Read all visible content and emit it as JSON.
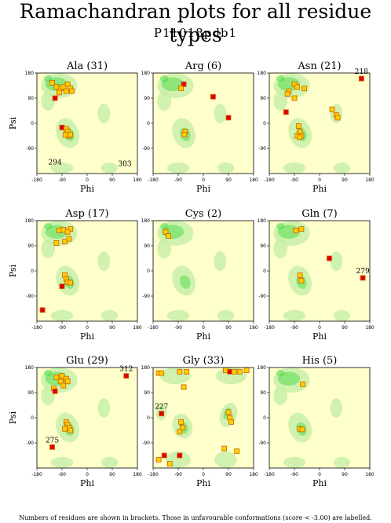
{
  "title": "Ramachandran plots for all residue types",
  "subtitle": "P11018pdb1",
  "footnote": "Numbers of residues are shown in brackets. Those in unfavourable conformations (score < -3.00) are labelled.",
  "colors": {
    "background": "#ffffcc",
    "favoured_light": "#c8f0a8",
    "favoured_dark": "#3cd83c",
    "normal_point": "#ffd000",
    "outlier_point": "#e00000",
    "point_border": "#d06000"
  },
  "chart_data": [
    {
      "type": "scatter",
      "title": "Ala (31)",
      "xlabel": "Phi",
      "ylabel": "Psi",
      "xlim": [
        -180,
        180
      ],
      "ylim": [
        -180,
        180
      ],
      "xticks": [
        "-180",
        "-90",
        "0",
        "90",
        "180"
      ],
      "yticks": [
        "180",
        "90",
        "0",
        "-90"
      ],
      "points": [
        [
          -125,
          145,
          "n"
        ],
        [
          -110,
          130,
          "n"
        ],
        [
          -95,
          125,
          "n"
        ],
        [
          -85,
          130,
          "n"
        ],
        [
          -70,
          140,
          "n"
        ],
        [
          -60,
          125,
          "n"
        ],
        [
          -75,
          115,
          "n"
        ],
        [
          -100,
          110,
          "n"
        ],
        [
          -55,
          115,
          "n"
        ],
        [
          -115,
          90,
          "o"
        ],
        [
          -90,
          -15,
          "o"
        ],
        [
          -75,
          -20,
          "n"
        ],
        [
          -70,
          -30,
          "n"
        ],
        [
          -65,
          -45,
          "n"
        ],
        [
          -60,
          -40,
          "n"
        ],
        [
          -78,
          -42,
          "n"
        ]
      ],
      "outliers": [
        {
          "label": "294",
          "x": -115,
          "y": -165
        },
        {
          "label": "303",
          "x": 135,
          "y": -170
        }
      ]
    },
    {
      "type": "scatter",
      "title": "Arg (6)",
      "xlabel": "Phi",
      "ylabel": "Psi",
      "xlim": [
        -180,
        180
      ],
      "ylim": [
        -180,
        180
      ],
      "xticks": [
        "-180",
        "-90",
        "0",
        "90",
        "180"
      ],
      "yticks": [
        "180",
        "90",
        "0",
        "-90"
      ],
      "points": [
        [
          -70,
          140,
          "o"
        ],
        [
          -80,
          125,
          "n"
        ],
        [
          -65,
          -30,
          "n"
        ],
        [
          -68,
          -40,
          "n"
        ],
        [
          35,
          95,
          "o"
        ],
        [
          90,
          20,
          "o"
        ]
      ],
      "outliers": []
    },
    {
      "type": "scatter",
      "title": "Asn (21)",
      "xlabel": "Phi",
      "ylabel": "Psi",
      "xlim": [
        -180,
        180
      ],
      "ylim": [
        -180,
        180
      ],
      "xticks": [
        "-180",
        "-90",
        "0",
        "90",
        "180"
      ],
      "yticks": [
        "180",
        "90",
        "0",
        "-90"
      ],
      "points": [
        [
          -90,
          140,
          "n"
        ],
        [
          -80,
          130,
          "n"
        ],
        [
          -110,
          115,
          "n"
        ],
        [
          -115,
          105,
          "n"
        ],
        [
          -90,
          90,
          "n"
        ],
        [
          -55,
          125,
          "n"
        ],
        [
          -120,
          40,
          "o"
        ],
        [
          -75,
          -10,
          "n"
        ],
        [
          -70,
          -30,
          "n"
        ],
        [
          -80,
          -45,
          "n"
        ],
        [
          -65,
          -45,
          "n"
        ],
        [
          -72,
          -50,
          "n"
        ],
        [
          45,
          50,
          "n"
        ],
        [
          60,
          30,
          "n"
        ],
        [
          65,
          20,
          "n"
        ],
        [
          150,
          160,
          "o"
        ]
      ],
      "outliers": [
        {
          "label": "218",
          "x": 150,
          "y": 160
        }
      ]
    },
    {
      "type": "scatter",
      "title": "Asp (17)",
      "xlabel": "Phi",
      "ylabel": "Psi",
      "xlim": [
        -180,
        180
      ],
      "ylim": [
        -180,
        180
      ],
      "xticks": [
        "-180",
        "-90",
        "0",
        "90",
        "180"
      ],
      "yticks": [
        "180",
        "90",
        "0",
        "-90"
      ],
      "points": [
        [
          -100,
          145,
          "n"
        ],
        [
          -85,
          148,
          "n"
        ],
        [
          -60,
          150,
          "n"
        ],
        [
          -70,
          140,
          "n"
        ],
        [
          -110,
          100,
          "n"
        ],
        [
          -80,
          105,
          "n"
        ],
        [
          -65,
          115,
          "n"
        ],
        [
          -80,
          -15,
          "n"
        ],
        [
          -75,
          -30,
          "n"
        ],
        [
          -70,
          -40,
          "n"
        ],
        [
          -60,
          -42,
          "n"
        ],
        [
          -90,
          -55,
          "o"
        ],
        [
          -160,
          -140,
          "o"
        ]
      ],
      "outliers": []
    },
    {
      "type": "scatter",
      "title": "Cys (2)",
      "xlabel": "Phi",
      "ylabel": "Psi",
      "xlim": [
        -180,
        180
      ],
      "ylim": [
        -180,
        180
      ],
      "xticks": [
        "-180",
        "-90",
        "0",
        "90",
        "180"
      ],
      "yticks": [
        "180",
        "90",
        "0",
        "-90"
      ],
      "points": [
        [
          -135,
          140,
          "n"
        ],
        [
          -125,
          125,
          "n"
        ]
      ],
      "outliers": []
    },
    {
      "type": "scatter",
      "title": "Gln (7)",
      "xlabel": "Phi",
      "ylabel": "Psi",
      "xlim": [
        -180,
        180
      ],
      "ylim": [
        -180,
        180
      ],
      "xticks": [
        "-180",
        "-90",
        "0",
        "90",
        "180"
      ],
      "yticks": [
        "180",
        "90",
        "0",
        "-90"
      ],
      "points": [
        [
          -85,
          145,
          "n"
        ],
        [
          -65,
          150,
          "n"
        ],
        [
          -70,
          -15,
          "n"
        ],
        [
          -65,
          -35,
          "n"
        ],
        [
          35,
          45,
          "o"
        ],
        [
          155,
          -25,
          "o"
        ]
      ],
      "outliers": [
        {
          "label": "279",
          "x": 155,
          "y": -25
        }
      ]
    },
    {
      "type": "scatter",
      "title": "Glu (29)",
      "xlabel": "Phi",
      "ylabel": "Psi",
      "xlim": [
        -180,
        180
      ],
      "ylim": [
        -180,
        180
      ],
      "xticks": [
        "-180",
        "-90",
        "0",
        "90",
        "180"
      ],
      "yticks": [
        "180",
        "90",
        "0",
        "-90"
      ],
      "points": [
        [
          -110,
          145,
          "n"
        ],
        [
          -90,
          150,
          "n"
        ],
        [
          -75,
          140,
          "n"
        ],
        [
          -70,
          130,
          "n"
        ],
        [
          -95,
          130,
          "n"
        ],
        [
          -120,
          105,
          "n"
        ],
        [
          -115,
          95,
          "o"
        ],
        [
          -85,
          115,
          "n"
        ],
        [
          -75,
          -15,
          "n"
        ],
        [
          -70,
          -25,
          "n"
        ],
        [
          -65,
          -35,
          "n"
        ],
        [
          -80,
          -40,
          "n"
        ],
        [
          -60,
          -45,
          "n"
        ],
        [
          140,
          150,
          "o"
        ],
        [
          -125,
          -105,
          "o"
        ]
      ],
      "outliers": [
        {
          "label": "312",
          "x": 140,
          "y": 150
        },
        {
          "label": "275",
          "x": -125,
          "y": -105
        }
      ]
    },
    {
      "type": "scatter",
      "title": "Gly (33)",
      "xlabel": "Phi",
      "ylabel": "Psi",
      "xlim": [
        -180,
        180
      ],
      "ylim": [
        -180,
        180
      ],
      "xticks": [
        "-180",
        "-90",
        "0",
        "90",
        "180"
      ],
      "yticks": [
        "180",
        "90",
        "0",
        "-90"
      ],
      "points": [
        [
          -160,
          160,
          "n"
        ],
        [
          -150,
          160,
          "n"
        ],
        [
          -85,
          165,
          "n"
        ],
        [
          -60,
          165,
          "n"
        ],
        [
          80,
          170,
          "n"
        ],
        [
          95,
          165,
          "o"
        ],
        [
          110,
          165,
          "n"
        ],
        [
          130,
          165,
          "n"
        ],
        [
          155,
          170,
          "n"
        ],
        [
          -70,
          110,
          "n"
        ],
        [
          -150,
          15,
          "o"
        ],
        [
          -80,
          -15,
          "n"
        ],
        [
          -75,
          -35,
          "n"
        ],
        [
          -85,
          -50,
          "n"
        ],
        [
          90,
          20,
          "n"
        ],
        [
          95,
          0,
          "n"
        ],
        [
          100,
          -15,
          "n"
        ],
        [
          75,
          -110,
          "n"
        ],
        [
          120,
          -120,
          "n"
        ],
        [
          -160,
          -150,
          "n"
        ],
        [
          -140,
          -135,
          "o"
        ],
        [
          -120,
          -165,
          "n"
        ],
        [
          -85,
          -135,
          "o"
        ]
      ],
      "outliers": [
        {
          "label": "227",
          "x": -150,
          "y": 15
        }
      ]
    },
    {
      "type": "scatter",
      "title": "His (5)",
      "xlabel": "Phi",
      "ylabel": "Psi",
      "xlim": [
        -180,
        180
      ],
      "ylim": [
        -180,
        180
      ],
      "xticks": [
        "-180",
        "-90",
        "0",
        "90",
        "180"
      ],
      "yticks": [
        "180",
        "90",
        "0",
        "-90"
      ],
      "points": [
        [
          -60,
          120,
          "n"
        ],
        [
          -70,
          -40,
          "n"
        ],
        [
          -62,
          -42,
          "n"
        ]
      ],
      "outliers": []
    }
  ]
}
